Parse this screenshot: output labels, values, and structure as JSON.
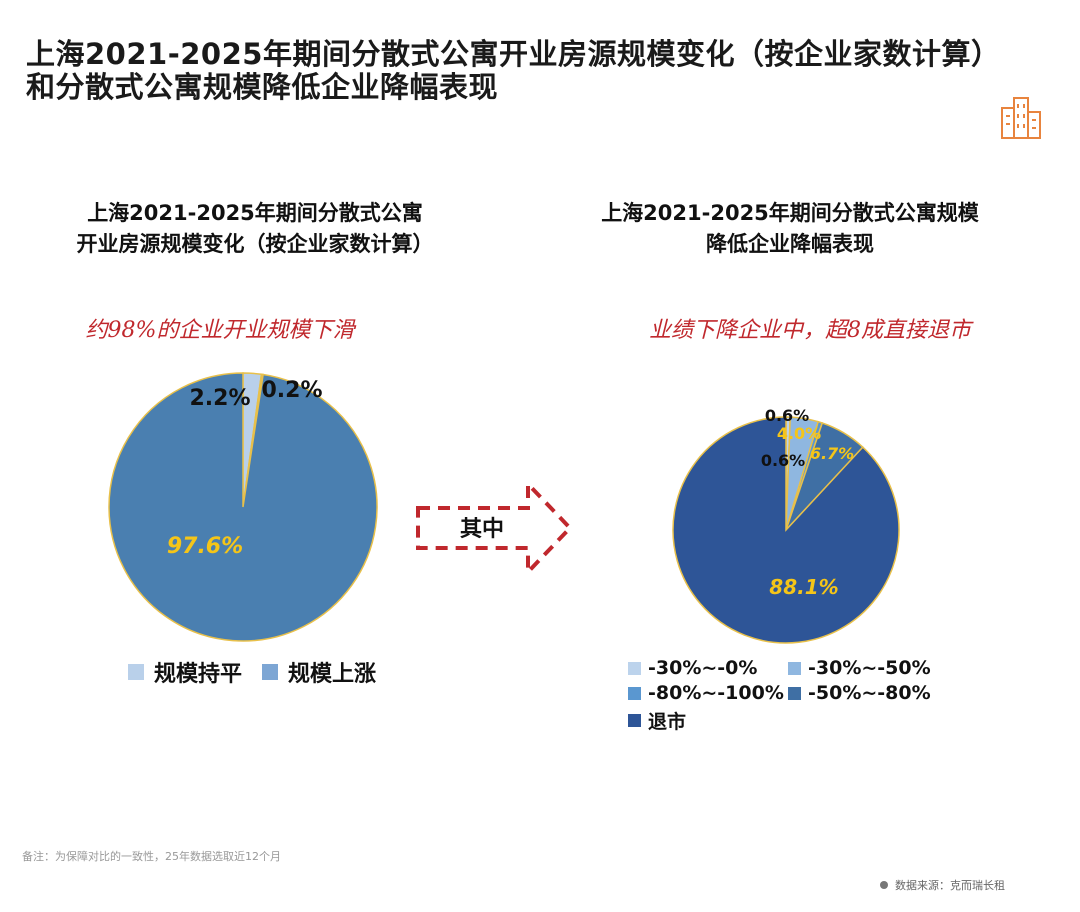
{
  "title_line1": "上海2021-2025年期间分散式公寓开业房源规模变化（按企业家数计算）",
  "title_line2": "和分散式公寓规模降低企业降幅表现",
  "arrow_label": "其中",
  "footnote": "备注：为保障对比的一致性，25年数据选取近12个月",
  "source": "数据来源：克而瑞长租",
  "colors": {
    "left_main": "#4a7fb0",
    "left_flat": "#b9d0ea",
    "left_up": "#7da6d4",
    "outline": "#e8c04a",
    "callout": "#c0282d",
    "arrow": "#c0282d",
    "orange_icon": "#e8843e"
  },
  "chart_data": [
    {
      "type": "pie",
      "title_line1": "上海2021-2025年期间分散式公寓",
      "title_line2": "开业房源规模变化（按企业家数计算）",
      "annotation": "约98%的企业开业规模下滑",
      "slices": [
        {
          "label": "",
          "value": 97.6,
          "value_label": "97.6%",
          "color": "#4a7fb0"
        },
        {
          "label": "规模持平",
          "value": 2.2,
          "value_label": "2.2%",
          "color": "#b9d0ea"
        },
        {
          "label": "规模上涨",
          "value": 0.2,
          "value_label": "0.2%",
          "color": "#7da6d4"
        }
      ],
      "legend": [
        "规模持平",
        "规模上涨"
      ]
    },
    {
      "type": "pie",
      "title_line1": "上海2021-2025年期间分散式公寓规模",
      "title_line2": "降低企业降幅表现",
      "annotation": "业绩下降企业中，超8成直接退市",
      "slices": [
        {
          "label": "-30%~-0%",
          "value": 0.6,
          "value_label": "0.6%",
          "color": "#bcd3ec"
        },
        {
          "label": "-30%~-50%",
          "value": 4.0,
          "value_label": "4.0%",
          "color": "#8fb7e0"
        },
        {
          "label": "-80%~-100%",
          "value": 0.6,
          "value_label": "0.6%",
          "color": "#5a97d0"
        },
        {
          "label": "-50%~-80%",
          "value": 6.7,
          "value_label": "6.7%",
          "color": "#3f6fa4"
        },
        {
          "label": "退市",
          "value": 88.1,
          "value_label": "88.1%",
          "color": "#2e5597"
        }
      ],
      "legend": [
        "-30%~-0%",
        "-30%~-50%",
        "-80%~-100%",
        "-50%~-80%",
        "退市"
      ]
    }
  ]
}
